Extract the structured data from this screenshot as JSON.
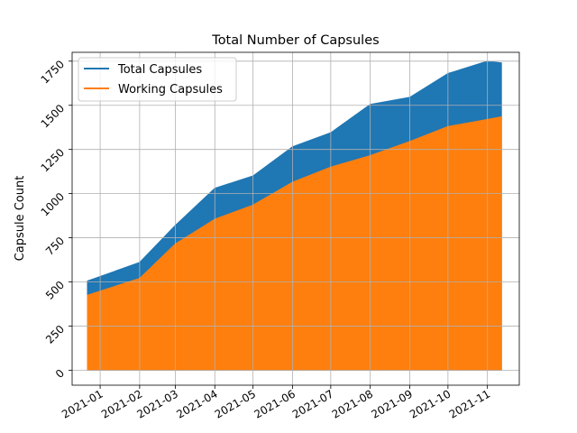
{
  "chart_data": {
    "type": "area",
    "title": "Total Number of Capsules",
    "xlabel": "",
    "ylabel": "Capsule Count",
    "grid": true,
    "legend_position": "top-left",
    "x_ticks": [
      "2021-01",
      "2021-02",
      "2021-03",
      "2021-04",
      "2021-05",
      "2021-06",
      "2021-07",
      "2021-08",
      "2021-09",
      "2021-10",
      "2021-11"
    ],
    "y_ticks": [
      0,
      250,
      500,
      750,
      1000,
      1250,
      1500,
      1750
    ],
    "x": [
      "2020-12-22",
      "2021-02-01",
      "2021-03-01",
      "2021-04-01",
      "2021-05-01",
      "2021-06-01",
      "2021-07-01",
      "2021-08-01",
      "2021-09-01",
      "2021-10-01",
      "2021-11-01",
      "2021-11-12"
    ],
    "xlim": [
      "2020-12-10",
      "2021-11-26"
    ],
    "ylim": [
      -85,
      1800
    ],
    "series": [
      {
        "name": "Total Capsules",
        "color": "#1f77b4",
        "values": [
          505,
          610,
          820,
          1030,
          1100,
          1265,
          1345,
          1505,
          1545,
          1680,
          1750,
          1740
        ]
      },
      {
        "name": "Working Capsules",
        "color": "#ff7f0e",
        "values": [
          425,
          520,
          715,
          855,
          935,
          1065,
          1150,
          1215,
          1295,
          1380,
          1420,
          1435
        ]
      }
    ]
  }
}
